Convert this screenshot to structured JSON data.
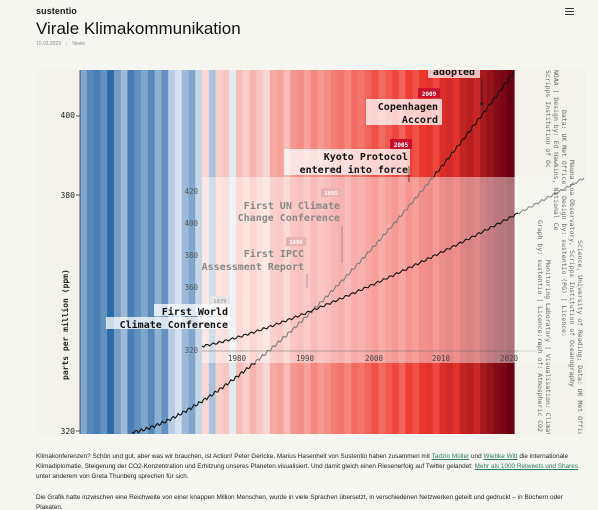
{
  "header": {
    "logo": "sustentio",
    "menu_icon": "hamburger-menu-icon"
  },
  "article": {
    "title": "Virale Klimakommunikation",
    "date": "10.03.2023",
    "category": "News"
  },
  "figure": {
    "ylabel": "parts per million (ppm)",
    "y_ticks_main": [
      "400",
      "380",
      "320"
    ],
    "y_ticks_inset": [
      "420",
      "400",
      "380",
      "360",
      "340",
      "320"
    ],
    "x_ticks_inset": [
      "1980",
      "1990",
      "2000",
      "2010",
      "2020"
    ],
    "annotations": [
      {
        "text": "adopted",
        "year_badge": ""
      },
      {
        "text_lines": [
          "Copenhagen",
          "Accord"
        ],
        "year_badge": "2009"
      },
      {
        "text_lines": [
          "Kyoto Protocol",
          "entered into force"
        ],
        "year_badge": "2005"
      },
      {
        "text_lines": [
          "First UN Climate",
          "Change Conference"
        ],
        "year_badge": "1995"
      },
      {
        "text_lines": [
          "First IPCC",
          "Assessment Report"
        ],
        "year_badge": "1990"
      },
      {
        "text_lines": [
          "First World",
          "Climate Conference"
        ],
        "year_badge": "1979"
      }
    ],
    "credit_lines": [
      "Scripps Institution of Oc",
      "Graph by: sustentio | Licence: c",
      "NOAA | Design by: Ed Hawkins, National Ce",
      "Data: UK Met Office | Design by: sustentio (PG) | Licence: ",
      "Mauna Loa Observatory, Scripps Institution of Oceanography",
      "Science, University of Reading; Data: UK Met Office",
      "Monitoring Laboratory | Visualisation: Climate",
      "raph of: Atmospheric CO2 concentration"
    ]
  },
  "body": {
    "p1": {
      "part1": "Klimakonferenzen? Schön und gut, aber was wir brauchen, ist Action! Peter Gericke, Marius Hasenheit von Sustentio haben zusammen mit ",
      "link1": "Tadzio Müller",
      "part2": " und ",
      "link2": "Wiebke Witt",
      "part3": " die internationale Klimadiplomatie, Steigerung der CO2-Konzentration und Erhitzung unseres Planeten visualisiert. Und damit gleich einen Riesenerfolg auf Twitter gelandet: ",
      "link3": "Mehr als 1000 Retweets und Shares",
      "part4": " unter anderem von Greta Thunberg sprechen für sich."
    },
    "p2": "Die Grafik hatte inzwischen eine Reichweite von einer knappen Million Menschen, wurde in viele Sprachen übersetzt, in verschiedenen Netzwerken geteilt und gedruckt – in Büchern oder Plakaten."
  },
  "colors": {
    "link": "#2d7a5a",
    "badge": "#c8102e",
    "stripe_blue_dark": "#2c6aa8",
    "stripe_red_dark": "#6a0010"
  }
}
